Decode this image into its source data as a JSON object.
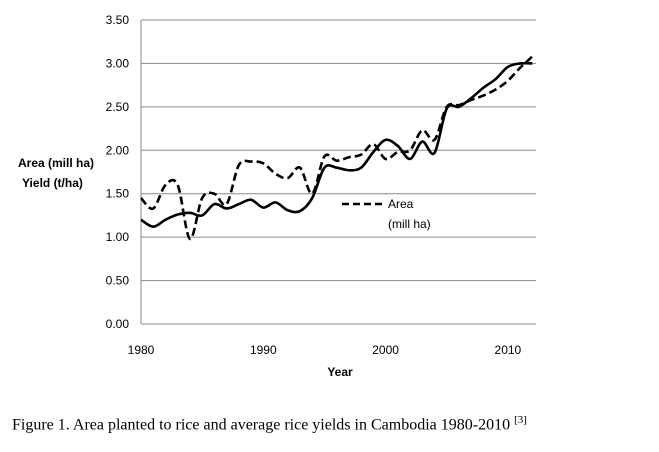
{
  "chart_data": {
    "type": "line",
    "title": "",
    "xlabel": "Year",
    "ylabel_lines": [
      "Area (mill ha)",
      "Yield (t/ha)"
    ],
    "xlim": [
      1980,
      2012.3
    ],
    "ylim": [
      0,
      3.5
    ],
    "xticks": [
      "1980",
      "1990",
      "2000",
      "2010"
    ],
    "xtick_values": [
      1980,
      1990,
      2000,
      2010
    ],
    "yticks": [
      "0.00",
      "0.50",
      "1.00",
      "1.50",
      "2.00",
      "2.50",
      "3.00",
      "3.50"
    ],
    "ytick_values": [
      0,
      0.5,
      1,
      1.5,
      2,
      2.5,
      3,
      3.5
    ],
    "grid": "horizontal",
    "legend": {
      "placement": "center-right",
      "label_lines": [
        "Area",
        "(mill ha)"
      ]
    },
    "x": [
      1980,
      1981,
      1982,
      1983,
      1984,
      1985,
      1986,
      1987,
      1988,
      1989,
      1990,
      1991,
      1992,
      1993,
      1994,
      1995,
      1996,
      1997,
      1998,
      1999,
      2000,
      2001,
      2002,
      2003,
      2004,
      2005,
      2006,
      2007,
      2008,
      2009,
      2010,
      2011,
      2012
    ],
    "series": [
      {
        "name": "Area (mill ha)",
        "style": "dashed",
        "values": [
          1.45,
          1.33,
          1.6,
          1.6,
          0.98,
          1.45,
          1.5,
          1.38,
          1.83,
          1.87,
          1.85,
          1.73,
          1.68,
          1.8,
          1.5,
          1.93,
          1.88,
          1.92,
          1.95,
          2.07,
          1.9,
          1.98,
          2.0,
          2.23,
          2.12,
          2.5,
          2.52,
          2.58,
          2.63,
          2.7,
          2.8,
          2.95,
          3.08
        ]
      },
      {
        "name": "Yield (t/ha)",
        "style": "solid",
        "values": [
          1.2,
          1.12,
          1.2,
          1.26,
          1.28,
          1.25,
          1.38,
          1.33,
          1.38,
          1.43,
          1.34,
          1.4,
          1.31,
          1.3,
          1.45,
          1.8,
          1.8,
          1.77,
          1.8,
          1.98,
          2.12,
          2.05,
          1.9,
          2.1,
          1.97,
          2.48,
          2.5,
          2.6,
          2.72,
          2.82,
          2.96,
          3.0,
          3.0
        ]
      }
    ]
  },
  "caption": "Figure 1. Area planted to rice and average rice yields in Cambodia 1980-2010 ",
  "caption_ref": "[3]"
}
